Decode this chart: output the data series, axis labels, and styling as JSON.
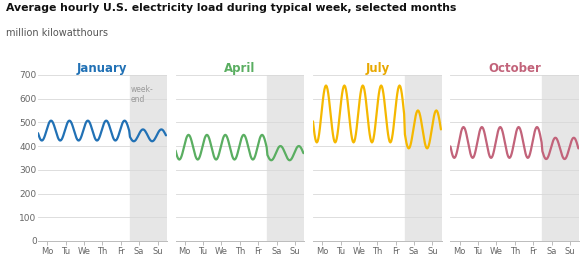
{
  "title": "Average hourly U.S. electricity load during typical week, selected months",
  "subtitle": "million kilowatthours",
  "months": [
    "January",
    "April",
    "July",
    "October"
  ],
  "month_colors": [
    "#2171b5",
    "#5aae61",
    "#f5b800",
    "#c2637a"
  ],
  "month_title_colors": [
    "#2171b5",
    "#5aae61",
    "#e8a800",
    "#c2637a"
  ],
  "ylim": [
    0,
    700
  ],
  "yticks": [
    0,
    100,
    200,
    300,
    400,
    500,
    600,
    700
  ],
  "xtick_labels": [
    "Mo",
    "Tu",
    "We",
    "Th",
    "Fr",
    "Sa",
    "Su"
  ],
  "background_color": "#ffffff",
  "weekend_color": "#e6e6e6",
  "jan_mid": 465,
  "jan_amp": 42,
  "jan_wknd_mid": 445,
  "jan_wknd_amp": 25,
  "apr_mid": 395,
  "apr_amp": 52,
  "apr_wknd_mid": 370,
  "apr_wknd_amp": 30,
  "jul_mid": 535,
  "jul_amp": 120,
  "jul_wknd_mid": 470,
  "jul_wknd_amp": 80,
  "oct_mid": 415,
  "oct_amp": 65,
  "oct_wknd_mid": 390,
  "oct_wknd_amp": 45,
  "linewidth": 1.6
}
